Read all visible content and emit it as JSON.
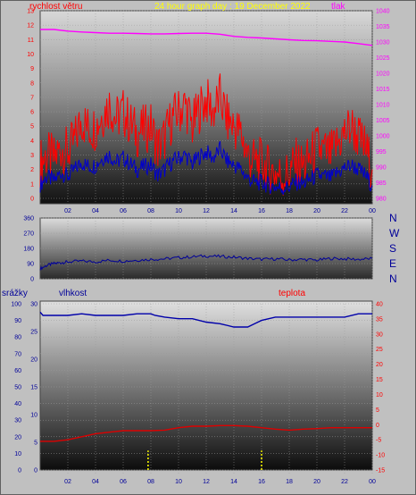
{
  "header": {
    "wind_label": "rychlost větru",
    "title": "24 hour graph day : 19 December 2022",
    "pressure_label": "tlak"
  },
  "bottom_header": {
    "rain_label": "srážky",
    "humidity_label": "vlhkost",
    "temp_label": "teplota"
  },
  "colors": {
    "wind": "#ff0000",
    "gust_base": "#0000cc",
    "pressure": "#ff00ff",
    "direction": "#000099",
    "humidity": "#0000aa",
    "temperature": "#dd0000",
    "rain": "#ffff00",
    "axis_text_left": "#ff0000",
    "axis_text_blue": "#000099",
    "axis_text_right_bottom": "#ff0000"
  },
  "chart_data": [
    {
      "id": "wind_pressure",
      "type": "line",
      "x_ticks": [
        "02",
        "04",
        "06",
        "08",
        "10",
        "12",
        "14",
        "16",
        "18",
        "20",
        "22",
        "00"
      ],
      "y_left_ticks": [
        "0",
        "1",
        "2",
        "3",
        "4",
        "5",
        "6",
        "7",
        "8",
        "9",
        "10",
        "11",
        "12",
        "13"
      ],
      "y_right_ticks": [
        "980",
        "985",
        "990",
        "995",
        "1000",
        "1005",
        "1010",
        "1015",
        "1020",
        "1025",
        "1030",
        "1035",
        "1040"
      ],
      "ylim_left": [
        0,
        13
      ],
      "ylim_right": [
        980,
        1040
      ],
      "series": [
        {
          "name": "rychlost větru",
          "axis": "left",
          "color": "#ff0000",
          "x": [
            0,
            0.5,
            1,
            1.5,
            2,
            2.5,
            3,
            3.5,
            4,
            4.5,
            5,
            5.5,
            6,
            6.5,
            7,
            7.5,
            8,
            8.5,
            9,
            9.5,
            10,
            10.5,
            11,
            11.5,
            12,
            12.5,
            13,
            13.5,
            14,
            14.5,
            15,
            15.5,
            16,
            16.5,
            17,
            17.5,
            18,
            18.5,
            19,
            19.5,
            20,
            20.5,
            21,
            21.5,
            22,
            22.5,
            23,
            23.5,
            24
          ],
          "y": [
            2.5,
            3.0,
            2.7,
            3.5,
            3.2,
            4.0,
            5.5,
            4.8,
            5.0,
            5.8,
            6.5,
            5.5,
            6.0,
            5.2,
            4.5,
            4.8,
            5.0,
            3.5,
            4.2,
            5.5,
            6.0,
            6.5,
            5.0,
            6.2,
            6.8,
            6.0,
            7.0,
            5.5,
            5.0,
            4.5,
            3.0,
            2.5,
            2.5,
            2.0,
            1.8,
            1.5,
            1.8,
            2.5,
            2.2,
            2.8,
            3.5,
            3.2,
            3.0,
            3.8,
            4.5,
            5.0,
            4.2,
            3.5,
            2.0
          ]
        },
        {
          "name": "",
          "axis": "left",
          "color": "#0000cc",
          "x": [
            0,
            0.5,
            1,
            1.5,
            2,
            2.5,
            3,
            3.5,
            4,
            4.5,
            5,
            5.5,
            6,
            6.5,
            7,
            7.5,
            8,
            8.5,
            9,
            9.5,
            10,
            10.5,
            11,
            11.5,
            12,
            12.5,
            13,
            13.5,
            14,
            14.5,
            15,
            15.5,
            16,
            16.5,
            17,
            17.5,
            18,
            18.5,
            19,
            19.5,
            20,
            20.5,
            21,
            21.5,
            22,
            22.5,
            23,
            23.5,
            24
          ],
          "y": [
            1.0,
            1.5,
            1.2,
            1.8,
            1.5,
            2.0,
            2.5,
            2.2,
            2.3,
            2.8,
            3.0,
            2.5,
            2.8,
            2.4,
            2.0,
            2.2,
            2.3,
            1.6,
            2.0,
            2.5,
            2.8,
            3.0,
            2.4,
            2.9,
            3.2,
            2.8,
            3.4,
            2.6,
            2.3,
            2.0,
            1.4,
            1.1,
            1.1,
            0.9,
            0.8,
            0.7,
            0.8,
            1.1,
            1.0,
            1.3,
            1.6,
            1.5,
            1.4,
            1.8,
            2.1,
            2.3,
            2.0,
            1.6,
            0.9
          ]
        },
        {
          "name": "tlak",
          "axis": "right",
          "color": "#ff00ff",
          "x": [
            0,
            1,
            2,
            3,
            4,
            5,
            6,
            7,
            8,
            9,
            10,
            11,
            12,
            13,
            14,
            15,
            16,
            17,
            18,
            19,
            20,
            21,
            22,
            23,
            24
          ],
          "y": [
            1034.0,
            1034.0,
            1033.5,
            1033.2,
            1033.0,
            1032.8,
            1032.8,
            1032.7,
            1032.6,
            1032.6,
            1032.7,
            1032.8,
            1032.8,
            1032.5,
            1031.8,
            1031.5,
            1031.3,
            1031.0,
            1030.7,
            1030.5,
            1030.4,
            1030.2,
            1030.0,
            1029.5,
            1028.9
          ]
        }
      ]
    },
    {
      "id": "direction",
      "type": "line",
      "x_ticks": [],
      "y_ticks": [
        "0",
        "90",
        "180",
        "270",
        "360"
      ],
      "direction_labels": [
        "N",
        "W",
        "S",
        "E",
        "N"
      ],
      "ylim": [
        0,
        360
      ],
      "series": [
        {
          "name": "",
          "color": "#000099",
          "x": [
            0,
            0.5,
            1,
            1.5,
            2,
            3,
            4,
            5,
            6,
            7,
            8,
            9,
            10,
            11,
            12,
            13,
            14,
            15,
            16,
            17,
            18,
            19,
            20,
            21,
            22,
            23,
            24
          ],
          "y": [
            60,
            80,
            90,
            95,
            100,
            105,
            100,
            110,
            105,
            110,
            115,
            118,
            125,
            130,
            135,
            132,
            128,
            120,
            115,
            118,
            112,
            115,
            110,
            120,
            118,
            115,
            120
          ]
        }
      ]
    },
    {
      "id": "rain_humidity_temp",
      "type": "line",
      "x_ticks": [
        "02",
        "04",
        "06",
        "08",
        "10",
        "12",
        "14",
        "16",
        "18",
        "20",
        "22",
        "00"
      ],
      "y_left_outer_ticks": [
        "0",
        "10",
        "20",
        "30",
        "40",
        "50",
        "60",
        "70",
        "80",
        "90",
        "100"
      ],
      "y_left_inner_ticks": [
        "0",
        "5",
        "10",
        "15",
        "20",
        "25",
        "30"
      ],
      "y_right_ticks": [
        "-15",
        "-10",
        "-5",
        "0",
        "5",
        "10",
        "15",
        "20",
        "25",
        "30",
        "35",
        "40"
      ],
      "ylim_humidity": [
        0,
        100
      ],
      "ylim_rain": [
        0,
        30
      ],
      "ylim_temperature": [
        -15,
        40
      ],
      "series": [
        {
          "name": "vlhkost",
          "axis": "left_outer",
          "color": "#0000aa",
          "x": [
            0,
            0.2,
            1,
            2,
            3,
            4,
            5,
            6,
            7,
            8,
            8.3,
            9,
            10,
            11,
            12,
            13,
            14,
            15,
            15.5,
            16,
            17,
            18,
            19,
            20,
            21,
            22,
            23,
            24
          ],
          "y": [
            95,
            93,
            93,
            93,
            94,
            93,
            93,
            93,
            94,
            94,
            93,
            92,
            91,
            91,
            89,
            88,
            86,
            86,
            88,
            90,
            92,
            92,
            92,
            92,
            92,
            92,
            94,
            94
          ]
        },
        {
          "name": "teplota",
          "axis": "right",
          "color": "#dd0000",
          "x": [
            0,
            1,
            2,
            3,
            4,
            5,
            6,
            7,
            8,
            9,
            10,
            11,
            12,
            13,
            14,
            15,
            16,
            17,
            18,
            19,
            20,
            21,
            22,
            23,
            24
          ],
          "y": [
            -5.5,
            -5.5,
            -5.0,
            -4.0,
            -3.0,
            -2.5,
            -2.0,
            -2.0,
            -2.0,
            -1.8,
            -1.0,
            -0.5,
            -0.5,
            -0.3,
            -0.3,
            -0.5,
            -1.0,
            -1.5,
            -1.8,
            -1.5,
            -1.3,
            -1.0,
            -1.0,
            -1.0,
            -1.0
          ]
        },
        {
          "name": "srážky",
          "axis": "left_inner",
          "color": "#ffff00",
          "bar": true,
          "x": [
            7.8,
            16.0
          ],
          "y": [
            3.5,
            3.5
          ]
        }
      ]
    }
  ]
}
